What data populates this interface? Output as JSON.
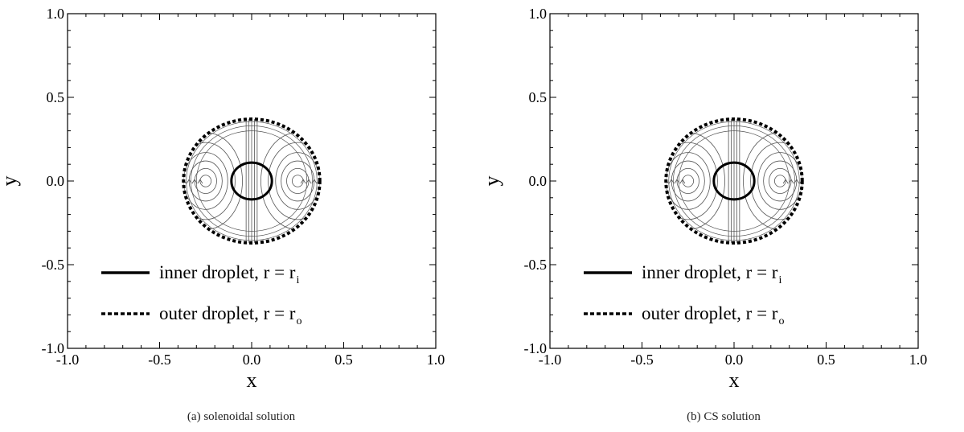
{
  "chart_data": [
    {
      "type": "line",
      "panel_caption": "(a)  solenoidal solution",
      "xlabel": "x",
      "ylabel": "y",
      "xlim": [
        -1.0,
        1.0
      ],
      "ylim": [
        -1.0,
        1.0
      ],
      "xticks": [
        "-1.0",
        "-0.5",
        "0.0",
        "0.5",
        "1.0"
      ],
      "yticks": [
        "1.0",
        "0.5",
        "0.0",
        "-0.5",
        "-1.0"
      ],
      "grid": false,
      "legend_placement": "bottom-left",
      "series": [
        {
          "name": "inner droplet, r = r",
          "name_subscript": "i",
          "style": "solid",
          "center": [
            0.0,
            0.0
          ],
          "radius": 0.11
        },
        {
          "name": "outer droplet, r = r",
          "name_subscript": "o",
          "style": "dotted",
          "center": [
            0.0,
            0.0
          ],
          "radius": 0.37
        }
      ],
      "streamlines": {
        "vortex_centers": [
          [
            -0.25,
            0.0
          ],
          [
            0.25,
            0.0
          ]
        ],
        "description": "symmetric toroidal vortex pair inside outer droplet"
      }
    },
    {
      "type": "line",
      "panel_caption": "(b)  CS solution",
      "xlabel": "x",
      "ylabel": "y",
      "xlim": [
        -1.0,
        1.0
      ],
      "ylim": [
        -1.0,
        1.0
      ],
      "xticks": [
        "-1.0",
        "-0.5",
        "0.0",
        "0.5",
        "1.0"
      ],
      "yticks": [
        "1.0",
        "0.5",
        "0.0",
        "-0.5",
        "-1.0"
      ],
      "grid": false,
      "legend_placement": "bottom-left",
      "series": [
        {
          "name": "inner droplet, r = r",
          "name_subscript": "i",
          "style": "solid",
          "center": [
            0.0,
            0.0
          ],
          "radius": 0.11
        },
        {
          "name": "outer droplet, r = r",
          "name_subscript": "o",
          "style": "dotted",
          "center": [
            0.0,
            0.0
          ],
          "radius": 0.37
        }
      ],
      "streamlines": {
        "vortex_centers": [
          [
            -0.25,
            0.0
          ],
          [
            0.25,
            0.0
          ]
        ],
        "description": "symmetric toroidal vortex pair inside outer droplet"
      }
    }
  ]
}
